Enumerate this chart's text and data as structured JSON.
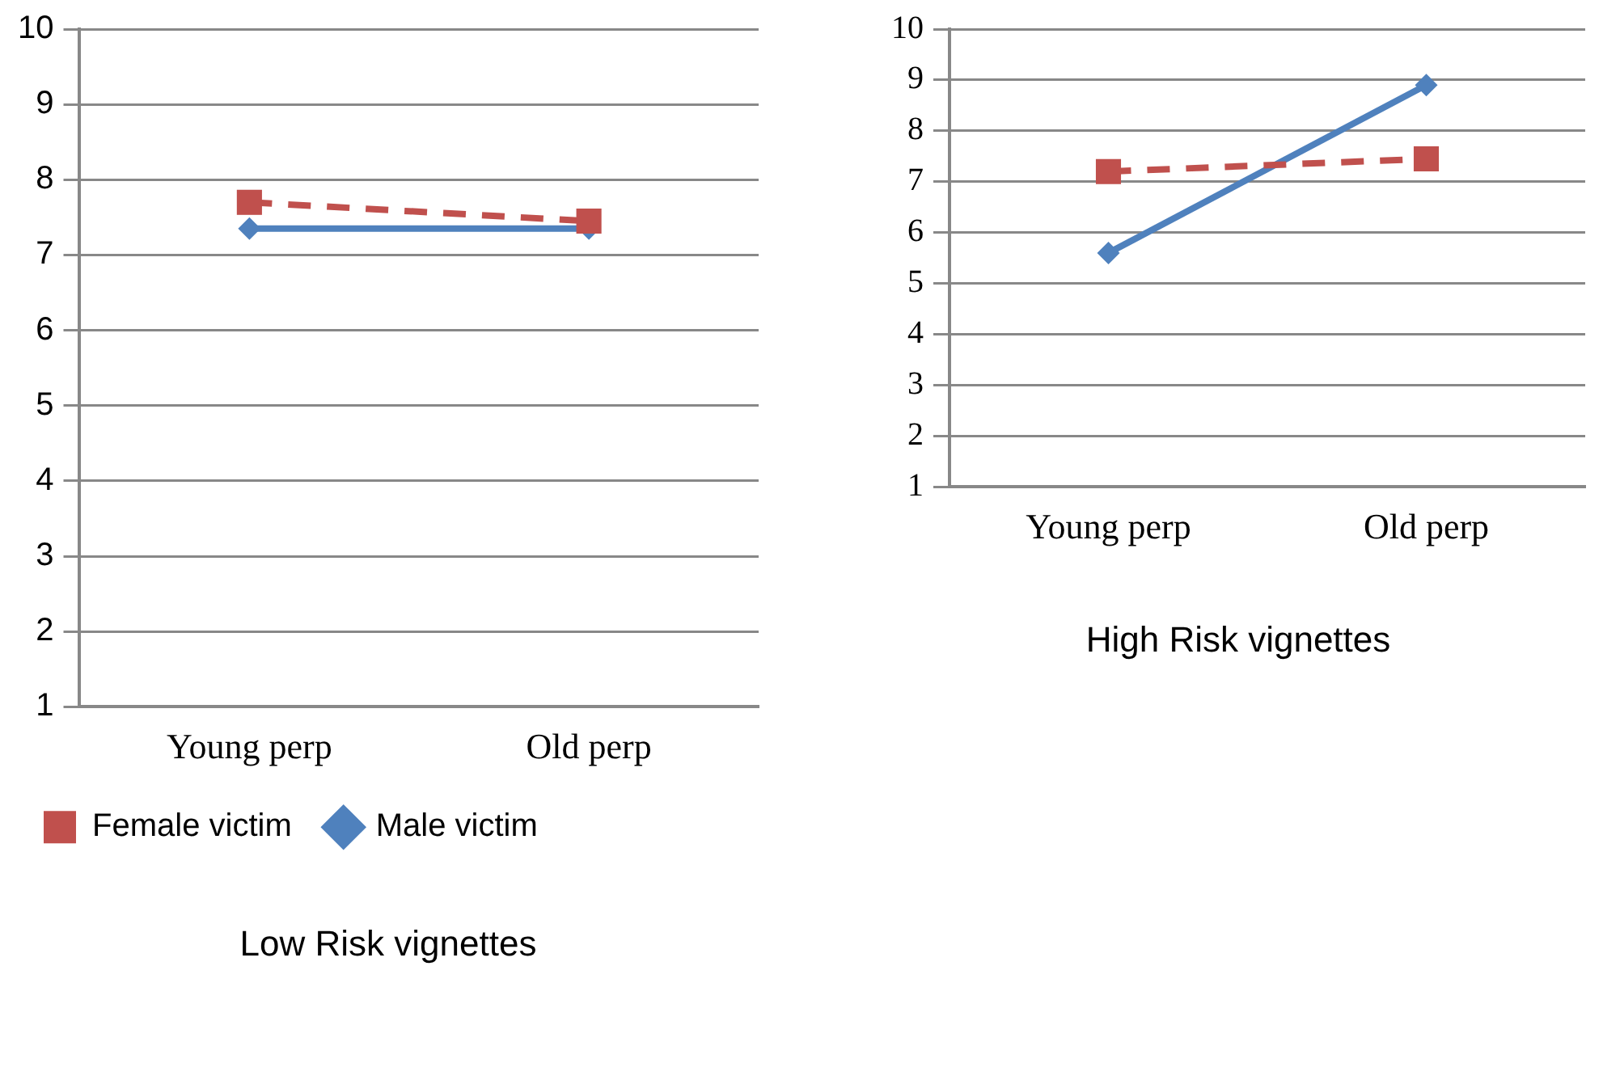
{
  "chart_data": [
    {
      "type": "line",
      "title": "Low Risk vignettes",
      "categories": [
        "Young perp",
        "Old perp"
      ],
      "ylim": [
        1,
        10
      ],
      "yticks": [
        1,
        2,
        3,
        4,
        5,
        6,
        7,
        8,
        9,
        10
      ],
      "grid": "y",
      "legend": "bottom",
      "series": [
        {
          "name": "Male victim",
          "color": "#4f81bd",
          "values": [
            7.35,
            7.35
          ],
          "marker": "diamond",
          "line_style": "solid"
        },
        {
          "name": "Female victim",
          "color": "#c0504d",
          "values": [
            7.7,
            7.45
          ],
          "marker": "square",
          "line_style": "dashed"
        }
      ]
    },
    {
      "type": "line",
      "title": "High Risk vignettes",
      "categories": [
        "Young perp",
        "Old perp"
      ],
      "ylim": [
        1,
        10
      ],
      "yticks": [
        1,
        2,
        3,
        4,
        5,
        6,
        7,
        8,
        9,
        10
      ],
      "grid": "y",
      "series": [
        {
          "color": "#4f81bd",
          "values": [
            5.6,
            8.9
          ],
          "marker": "diamond",
          "line_style": "solid"
        },
        {
          "color": "#c0504d",
          "values": [
            7.2,
            7.45
          ],
          "marker": "square",
          "line_style": "dashed"
        }
      ]
    }
  ]
}
